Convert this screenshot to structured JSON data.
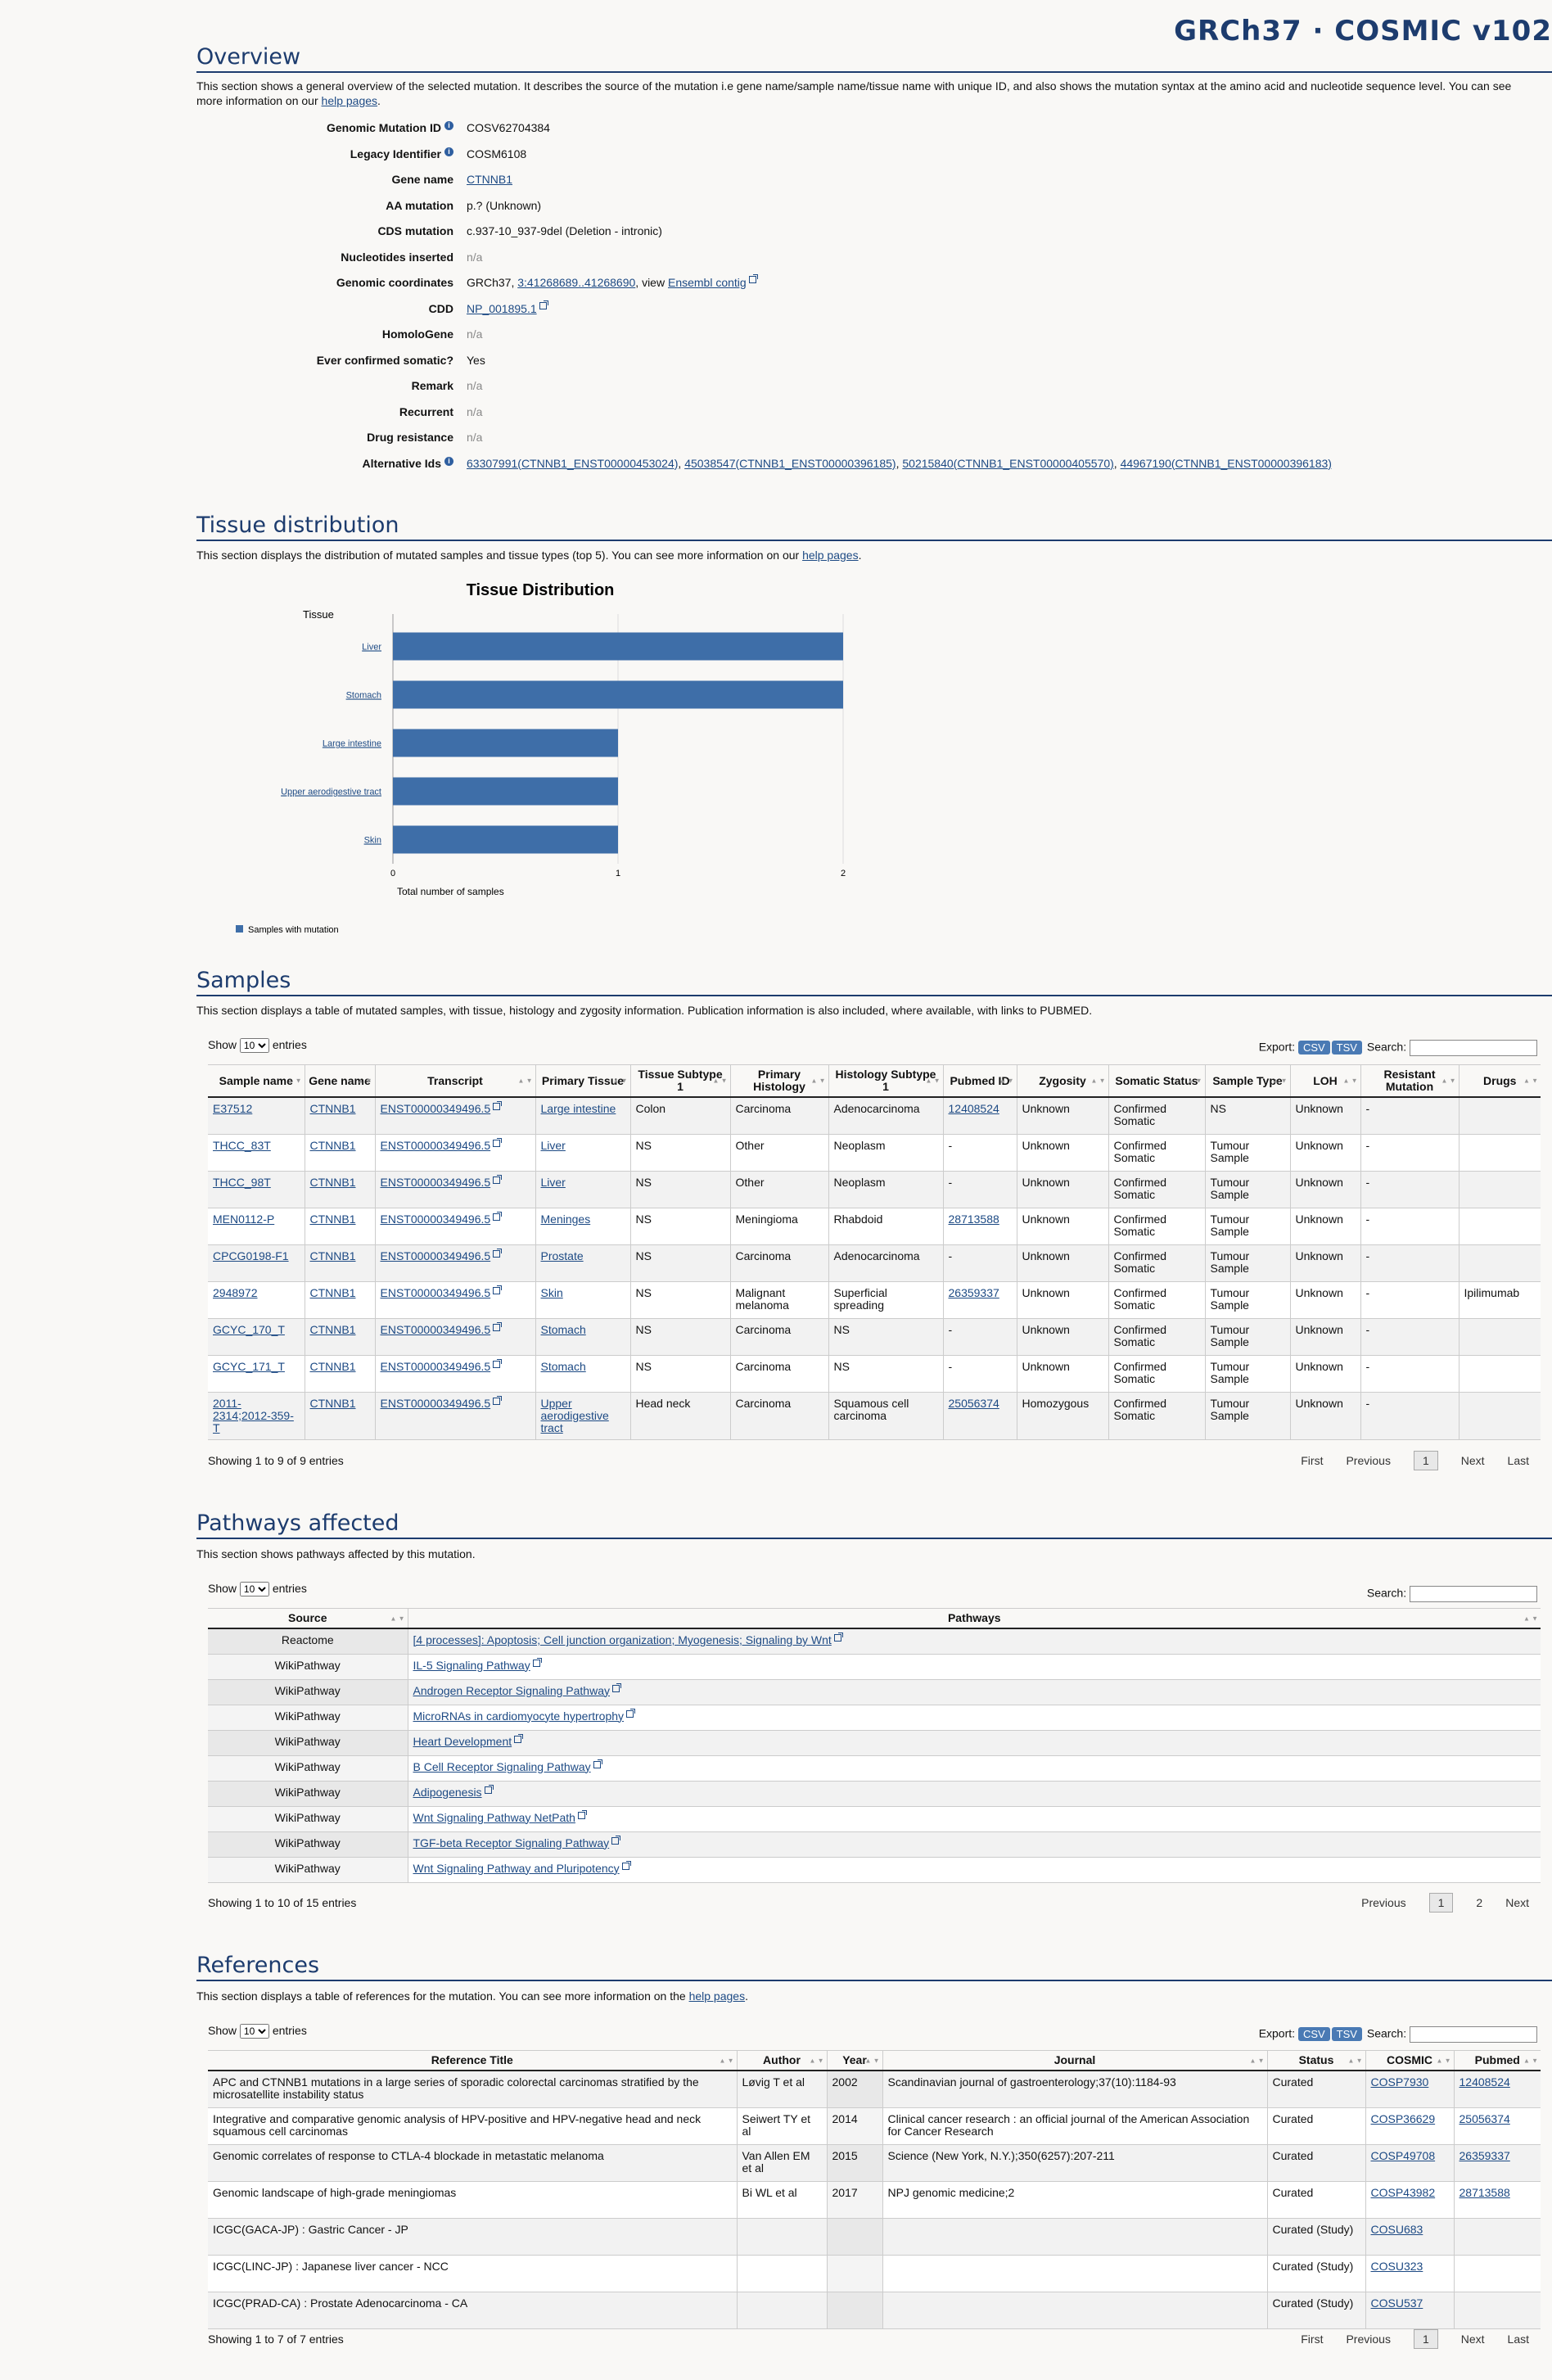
{
  "site_title": "GRCh37 · COSMIC v102",
  "overview": {
    "heading": "Overview",
    "description": "This section shows a general overview of the selected mutation. It describes the source of the mutation i.e gene name/sample name/tissue name with unique ID, and also shows the mutation syntax at the amino acid and nucleotide sequence level. You can see more information on our ",
    "help_link": "help pages",
    "fields": [
      {
        "label": "Genomic Mutation ID",
        "info": true,
        "value": "COSV62704384"
      },
      {
        "label": "Legacy Identifier",
        "info": true,
        "value": "COSM6108"
      },
      {
        "label": "Gene name",
        "link": "CTNNB1"
      },
      {
        "label": "AA mutation",
        "value": "p.? (Unknown)"
      },
      {
        "label": "CDS mutation",
        "value": "c.937-10_937-9del (Deletion - intronic)"
      },
      {
        "label": "Nucleotides inserted",
        "na": "n/a"
      },
      {
        "label": "Genomic coordinates",
        "prefix": "GRCh37, ",
        "link": "3:41268689..41268690",
        "mid": ", view ",
        "link2": "Ensembl contig"
      },
      {
        "label": "CDD",
        "link": "NP_001895.1"
      },
      {
        "label": "HomoloGene",
        "na": "n/a"
      },
      {
        "label": "Ever confirmed somatic?",
        "value": "Yes"
      },
      {
        "label": "Remark",
        "na": "n/a"
      },
      {
        "label": "Recurrent",
        "na": "n/a"
      },
      {
        "label": "Drug resistance",
        "na": "n/a"
      },
      {
        "label": "Alternative Ids",
        "info": true,
        "links": [
          "63307991(CTNNB1_ENST00000453024)",
          "45038547(CTNNB1_ENST00000396185)",
          "50215840(CTNNB1_ENST00000405570)",
          "44967190(CTNNB1_ENST00000396183)"
        ]
      }
    ]
  },
  "tissue": {
    "heading": "Tissue distribution",
    "description": "This section displays the distribution of mutated samples and tissue types (top 5). You can see more information on our ",
    "help_link": "help pages",
    "end": "."
  },
  "chart_data": {
    "type": "bar",
    "orientation": "horizontal",
    "title": "Tissue Distribution",
    "ylabel": "Tissue",
    "xlabel": "Total number of samples",
    "categories": [
      "Liver",
      "Stomach",
      "Large intestine",
      "Upper aerodigestive tract",
      "Skin"
    ],
    "series": [
      {
        "name": "Samples with mutation",
        "values": [
          2,
          2,
          1,
          1,
          1
        ]
      }
    ],
    "xlim": [
      0,
      2
    ],
    "xticks": [
      "0",
      "1",
      "2"
    ],
    "bar_color": "#3e6ea8",
    "legend": "bottom-left"
  },
  "samples": {
    "heading": "Samples",
    "description": "This section displays a table of mutated samples, with tissue, histology and zygosity information. Publication information is also included, where available, with links to PUBMED.",
    "show": "Show",
    "entries_value": "10",
    "entries": "entries",
    "export": "Export:",
    "csv": "CSV",
    "tsv": "TSV",
    "search": "Search:",
    "columns": [
      "Sample name",
      "Gene name",
      "Transcript",
      "Primary Tissue",
      "Tissue Subtype 1",
      "Primary Histology",
      "Histology Subtype 1",
      "Pubmed ID",
      "Zygosity",
      "Somatic Status",
      "Sample Type",
      "LOH",
      "Resistant Mutation",
      "Drugs"
    ],
    "rows": [
      [
        "E37512",
        "CTNNB1",
        "ENST00000349496.5",
        "Large intestine",
        "Colon",
        "Carcinoma",
        "Adenocarcinoma",
        "12408524",
        "Unknown",
        "Confirmed Somatic",
        "NS",
        "Unknown",
        "-",
        ""
      ],
      [
        "THCC_83T",
        "CTNNB1",
        "ENST00000349496.5",
        "Liver",
        "NS",
        "Other",
        "Neoplasm",
        "-",
        "Unknown",
        "Confirmed Somatic",
        "Tumour Sample",
        "Unknown",
        "-",
        ""
      ],
      [
        "THCC_98T",
        "CTNNB1",
        "ENST00000349496.5",
        "Liver",
        "NS",
        "Other",
        "Neoplasm",
        "-",
        "Unknown",
        "Confirmed Somatic",
        "Tumour Sample",
        "Unknown",
        "-",
        ""
      ],
      [
        "MEN0112-P",
        "CTNNB1",
        "ENST00000349496.5",
        "Meninges",
        "NS",
        "Meningioma",
        "Rhabdoid",
        "28713588",
        "Unknown",
        "Confirmed Somatic",
        "Tumour Sample",
        "Unknown",
        "-",
        ""
      ],
      [
        "CPCG0198-F1",
        "CTNNB1",
        "ENST00000349496.5",
        "Prostate",
        "NS",
        "Carcinoma",
        "Adenocarcinoma",
        "-",
        "Unknown",
        "Confirmed Somatic",
        "Tumour Sample",
        "Unknown",
        "-",
        ""
      ],
      [
        "2948972",
        "CTNNB1",
        "ENST00000349496.5",
        "Skin",
        "NS",
        "Malignant melanoma",
        "Superficial spreading",
        "26359337",
        "Unknown",
        "Confirmed Somatic",
        "Tumour Sample",
        "Unknown",
        "-",
        "Ipilimumab"
      ],
      [
        "GCYC_170_T",
        "CTNNB1",
        "ENST00000349496.5",
        "Stomach",
        "NS",
        "Carcinoma",
        "NS",
        "-",
        "Unknown",
        "Confirmed Somatic",
        "Tumour Sample",
        "Unknown",
        "-",
        ""
      ],
      [
        "GCYC_171_T",
        "CTNNB1",
        "ENST00000349496.5",
        "Stomach",
        "NS",
        "Carcinoma",
        "NS",
        "-",
        "Unknown",
        "Confirmed Somatic",
        "Tumour Sample",
        "Unknown",
        "-",
        ""
      ],
      [
        "2011-2314;2012-359-T",
        "CTNNB1",
        "ENST00000349496.5",
        "Upper aerodigestive tract",
        "Head neck",
        "Carcinoma",
        "Squamous cell carcinoma",
        "25056374",
        "Homozygous",
        "Confirmed Somatic",
        "Tumour Sample",
        "Unknown",
        "-",
        ""
      ]
    ],
    "showing": "Showing 1 to 9 of 9 entries",
    "pager": {
      "first": "First",
      "previous": "Previous",
      "page": "1",
      "next": "Next",
      "last": "Last"
    }
  },
  "pathways": {
    "heading": "Pathways affected",
    "description": "This section shows pathways affected by this mutation.",
    "show": "Show",
    "entries_value": "10",
    "entries": "entries",
    "search": "Search:",
    "columns": [
      "Source",
      "Pathways"
    ],
    "rows": [
      [
        "Reactome",
        "[4 processes]: Apoptosis; Cell junction organization; Myogenesis; Signaling by Wnt"
      ],
      [
        "WikiPathway",
        "IL-5 Signaling Pathway"
      ],
      [
        "WikiPathway",
        "Androgen Receptor Signaling Pathway"
      ],
      [
        "WikiPathway",
        "MicroRNAs in cardiomyocyte hypertrophy"
      ],
      [
        "WikiPathway",
        "Heart Development"
      ],
      [
        "WikiPathway",
        "B Cell Receptor Signaling Pathway"
      ],
      [
        "WikiPathway",
        "Adipogenesis"
      ],
      [
        "WikiPathway",
        "Wnt Signaling Pathway NetPath"
      ],
      [
        "WikiPathway",
        "TGF-beta Receptor Signaling Pathway"
      ],
      [
        "WikiPathway",
        "Wnt Signaling Pathway and Pluripotency"
      ]
    ],
    "showing": "Showing 1 to 10 of 15 entries",
    "pager": {
      "previous": "Previous",
      "page1": "1",
      "page2": "2",
      "next": "Next"
    }
  },
  "references": {
    "heading": "References",
    "description": "This section displays a table of references for the mutation. You can see more information on the ",
    "help_link": "help pages",
    "end": ".",
    "show": "Show",
    "entries_value": "10",
    "entries": "entries",
    "export": "Export:",
    "csv": "CSV",
    "tsv": "TSV",
    "search": "Search:",
    "columns": [
      "Reference Title",
      "Author",
      "Year",
      "Journal",
      "Status",
      "COSMIC",
      "Pubmed"
    ],
    "rows": [
      [
        "APC and CTNNB1 mutations in a large series of sporadic colorectal carcinomas stratified by the microsatellite instability status",
        "Løvig T et al",
        "2002",
        "Scandinavian journal of gastroenterology;37(10):1184-93",
        "Curated",
        "COSP7930",
        "12408524"
      ],
      [
        "Integrative and comparative genomic analysis of HPV-positive and HPV-negative head and neck squamous cell carcinomas",
        "Seiwert TY et al",
        "2014",
        "Clinical cancer research : an official journal of the American Association for Cancer Research",
        "Curated",
        "COSP36629",
        "25056374"
      ],
      [
        "Genomic correlates of response to CTLA-4 blockade in metastatic melanoma",
        "Van Allen EM et al",
        "2015",
        "Science (New York, N.Y.);350(6257):207-211",
        "Curated",
        "COSP49708",
        "26359337"
      ],
      [
        "Genomic landscape of high-grade meningiomas",
        "Bi WL et al",
        "2017",
        "NPJ genomic medicine;2",
        "Curated",
        "COSP43982",
        "28713588"
      ],
      [
        "ICGC(GACA-JP) : Gastric Cancer - JP",
        "",
        "",
        "",
        "Curated (Study)",
        "COSU683",
        ""
      ],
      [
        "ICGC(LINC-JP) : Japanese liver cancer - NCC",
        "",
        "",
        "",
        "Curated (Study)",
        "COSU323",
        ""
      ],
      [
        "ICGC(PRAD-CA) : Prostate Adenocarcinoma - CA",
        "",
        "",
        "",
        "Curated (Study)",
        "COSU537",
        ""
      ]
    ],
    "showing": "Showing 1 to 7 of 7 entries",
    "pager": {
      "first": "First",
      "previous": "Previous",
      "page": "1",
      "next": "Next",
      "last": "Last"
    }
  }
}
